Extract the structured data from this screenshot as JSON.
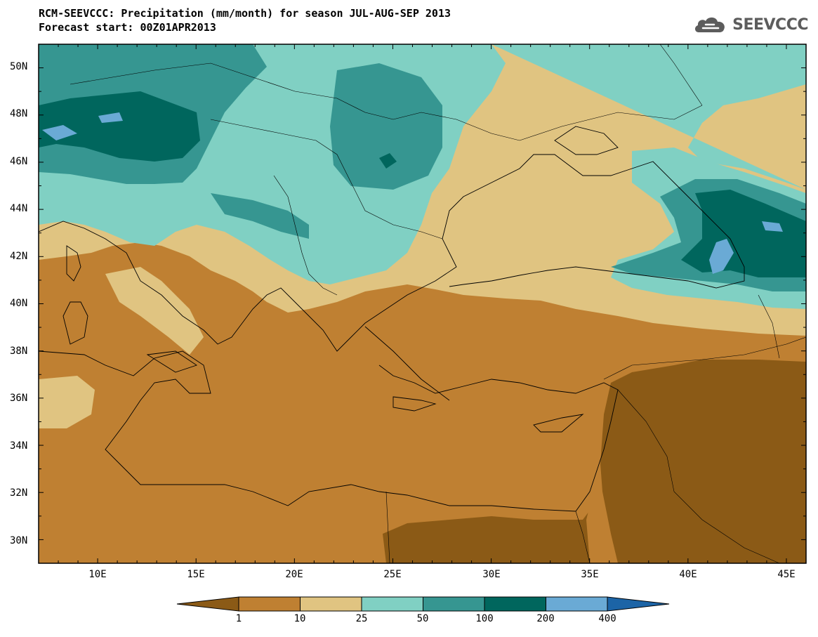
{
  "title": {
    "line1": "RCM-SEEVCCC: Precipitation (mm/month) for season JUL-AUG-SEP 2013",
    "line2": "Forecast start: 00Z01APR2013"
  },
  "logo": {
    "text": "SEEVCCC",
    "icon": "cloud-icon"
  },
  "map": {
    "type": "filled-contour",
    "variable": "Precipitation",
    "units": "mm/month",
    "lat_range": [
      29,
      51
    ],
    "lon_range": [
      7,
      46
    ],
    "lat_ticks": [
      "50N",
      "48N",
      "46N",
      "44N",
      "42N",
      "40N",
      "38N",
      "36N",
      "34N",
      "32N",
      "30N"
    ],
    "lon_ticks": [
      "10E",
      "15E",
      "20E",
      "25E",
      "30E",
      "35E",
      "40E",
      "45E"
    ]
  },
  "colorbar": {
    "labels": [
      "1",
      "10",
      "25",
      "50",
      "100",
      "200",
      "400"
    ],
    "colors": [
      "#8b5a16",
      "#bf8032",
      "#e0c481",
      "#80d0c3",
      "#369691",
      "#00665d",
      "#6aaad5",
      "#1c64a6"
    ]
  }
}
